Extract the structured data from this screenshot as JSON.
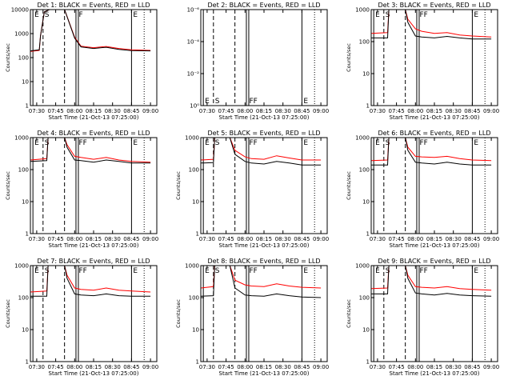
{
  "chart_data": [
    {
      "type": "line",
      "title": "Det 1: BLACK = Events, RED = LLD",
      "xlabel": "Start Time (21-Oct-13 07:25:00)",
      "ylabel": "Counts/sec",
      "x_ticks": [
        "07:30",
        "07:45",
        "08:00",
        "08:15",
        "08:30",
        "08:45",
        "09:00"
      ],
      "y_ticks": [
        "1",
        "10",
        "100",
        "1000",
        "10000"
      ],
      "y_log": true,
      "ylim": [
        1,
        10000
      ],
      "markers": [
        "E",
        "S",
        "F",
        "E"
      ],
      "series": [
        {
          "color": "#ff0000",
          "x": [
            "07:25",
            "07:32",
            "07:33",
            "07:36",
            "07:40",
            "07:45",
            "07:52",
            "08:00",
            "08:05",
            "08:15",
            "08:25",
            "08:35",
            "08:45",
            "09:00"
          ],
          "values": [
            180,
            200,
            800,
            8000,
            10000,
            10000,
            10000,
            700,
            300,
            260,
            290,
            240,
            210,
            200
          ]
        },
        {
          "color": "#000000",
          "x": [
            "07:25",
            "07:32",
            "07:33",
            "07:36",
            "07:40",
            "07:45",
            "07:52",
            "08:00",
            "08:05",
            "08:15",
            "08:25",
            "08:35",
            "08:45",
            "09:00"
          ],
          "values": [
            190,
            210,
            800,
            8000,
            10000,
            10000,
            10000,
            650,
            280,
            240,
            270,
            220,
            195,
            190
          ]
        }
      ]
    },
    {
      "type": "line",
      "title": "Det 2: BLACK = Events, RED = LLD",
      "xlabel": "Start Time (21-Oct-13 07:25:00)",
      "ylabel": "",
      "x_ticks": [
        "07:30",
        "07:45",
        "08:00",
        "08:15",
        "08:30",
        "08:45",
        "09:00"
      ],
      "y_ticks": [
        "10⁰",
        "10⁻²",
        "10⁻⁴",
        "10⁻⁶"
      ],
      "y_log": true,
      "ylim": [
        1,
        1e-06
      ],
      "markers": [
        "E",
        "S",
        "FF",
        "E"
      ],
      "series": []
    },
    {
      "type": "line",
      "title": "Det 3: BLACK = Events, RED = LLD",
      "xlabel": "Start Time (21-Oct-13 07:25:00)",
      "ylabel": "Counts/sec",
      "x_ticks": [
        "07:30",
        "07:45",
        "08:00",
        "08:15",
        "08:30",
        "08:45",
        "09:00"
      ],
      "y_ticks": [
        "1",
        "10",
        "100",
        "1000"
      ],
      "y_log": true,
      "ylim": [
        1,
        1000
      ],
      "markers": [
        "E",
        "S",
        "FF",
        "E"
      ],
      "series": [
        {
          "color": "#ff0000",
          "x": [
            "07:25",
            "07:38",
            "07:39",
            "07:41",
            "07:52",
            "07:54",
            "08:00",
            "08:05",
            "08:15",
            "08:25",
            "08:35",
            "08:45",
            "09:00"
          ],
          "values": [
            180,
            190,
            1000,
            1000,
            1000,
            500,
            250,
            210,
            180,
            190,
            160,
            150,
            140
          ]
        },
        {
          "color": "#000000",
          "x": [
            "07:25",
            "07:38",
            "07:39",
            "07:41",
            "07:52",
            "07:54",
            "08:00",
            "08:05",
            "08:15",
            "08:25",
            "08:35",
            "08:45",
            "09:00"
          ],
          "values": [
            130,
            130,
            1000,
            1000,
            1000,
            400,
            150,
            140,
            130,
            145,
            130,
            120,
            120
          ]
        }
      ]
    },
    {
      "type": "line",
      "title": "Det 4: BLACK = Events, RED = LLD",
      "xlabel": "Start Time (21-Oct-13 07:25:00)",
      "ylabel": "Counts/sec",
      "x_ticks": [
        "07:30",
        "07:45",
        "08:00",
        "08:15",
        "08:30",
        "08:45",
        "09:00"
      ],
      "y_ticks": [
        "1",
        "10",
        "100",
        "1000"
      ],
      "y_log": true,
      "ylim": [
        1,
        1000
      ],
      "markers": [
        "E",
        "S",
        "FF",
        "E"
      ],
      "series": [
        {
          "color": "#ff0000",
          "x": [
            "07:25",
            "07:38",
            "07:39",
            "07:41",
            "07:52",
            "07:54",
            "08:00",
            "08:05",
            "08:15",
            "08:25",
            "08:35",
            "08:45",
            "09:00"
          ],
          "values": [
            200,
            220,
            1000,
            1000,
            1000,
            600,
            260,
            240,
            210,
            240,
            200,
            180,
            170
          ]
        },
        {
          "color": "#000000",
          "x": [
            "07:25",
            "07:38",
            "07:39",
            "07:41",
            "07:52",
            "07:54",
            "08:00",
            "08:05",
            "08:15",
            "08:25",
            "08:35",
            "08:45",
            "09:00"
          ],
          "values": [
            180,
            190,
            1000,
            1000,
            1000,
            500,
            200,
            190,
            170,
            200,
            180,
            160,
            160
          ]
        }
      ]
    },
    {
      "type": "line",
      "title": "Det 5: BLACK = Events, RED = LLD",
      "xlabel": "Start Time (21-Oct-13 07:25:00)",
      "ylabel": "Counts/sec",
      "x_ticks": [
        "07:30",
        "07:45",
        "08:00",
        "08:15",
        "08:30",
        "08:45",
        "09:00"
      ],
      "y_ticks": [
        "1",
        "10",
        "100",
        "1000"
      ],
      "y_log": true,
      "ylim": [
        1,
        1000
      ],
      "markers": [
        "E",
        "S",
        "FF",
        "E"
      ],
      "series": [
        {
          "color": "#ff0000",
          "x": [
            "07:25",
            "07:35",
            "07:36",
            "07:38",
            "07:48",
            "07:52",
            "08:00",
            "08:05",
            "08:15",
            "08:25",
            "08:35",
            "08:45",
            "09:00"
          ],
          "values": [
            200,
            210,
            1000,
            1000,
            1000,
            400,
            250,
            220,
            210,
            270,
            230,
            200,
            200
          ]
        },
        {
          "color": "#000000",
          "x": [
            "07:25",
            "07:35",
            "07:36",
            "07:38",
            "07:48",
            "07:52",
            "08:00",
            "08:05",
            "08:15",
            "08:25",
            "08:35",
            "08:45",
            "09:00"
          ],
          "values": [
            160,
            165,
            1000,
            1000,
            1000,
            300,
            180,
            160,
            150,
            180,
            160,
            140,
            140
          ]
        }
      ]
    },
    {
      "type": "line",
      "title": "Det 6: BLACK = Events, RED = LLD",
      "xlabel": "Start Time (21-Oct-13 07:25:00)",
      "ylabel": "Counts/sec",
      "x_ticks": [
        "07:30",
        "07:45",
        "08:00",
        "08:15",
        "08:30",
        "08:45",
        "09:00"
      ],
      "y_ticks": [
        "1",
        "10",
        "100",
        "1000"
      ],
      "y_log": true,
      "ylim": [
        1,
        1000
      ],
      "markers": [
        "E",
        "S",
        "FF",
        "E"
      ],
      "series": [
        {
          "color": "#ff0000",
          "x": [
            "07:25",
            "07:38",
            "07:39",
            "07:41",
            "07:52",
            "07:54",
            "08:00",
            "08:05",
            "08:15",
            "08:25",
            "08:35",
            "08:45",
            "09:00"
          ],
          "values": [
            190,
            200,
            1000,
            1000,
            1000,
            500,
            260,
            250,
            240,
            260,
            220,
            200,
            190
          ]
        },
        {
          "color": "#000000",
          "x": [
            "07:25",
            "07:38",
            "07:39",
            "07:41",
            "07:52",
            "07:54",
            "08:00",
            "08:05",
            "08:15",
            "08:25",
            "08:35",
            "08:45",
            "09:00"
          ],
          "values": [
            140,
            140,
            1000,
            1000,
            1000,
            400,
            170,
            160,
            150,
            170,
            150,
            140,
            140
          ]
        }
      ]
    },
    {
      "type": "line",
      "title": "Det 7: BLACK = Events, RED = LLD",
      "xlabel": "Start Time (21-Oct-13 07:25:00)",
      "ylabel": "Counts/sec",
      "x_ticks": [
        "07:30",
        "07:45",
        "08:00",
        "08:15",
        "08:30",
        "08:45",
        "09:00"
      ],
      "y_ticks": [
        "1",
        "10",
        "100",
        "1000"
      ],
      "y_log": true,
      "ylim": [
        1,
        1000
      ],
      "markers": [
        "E",
        "S",
        "FF",
        "E"
      ],
      "series": [
        {
          "color": "#ff0000",
          "x": [
            "07:25",
            "07:38",
            "07:39",
            "07:41",
            "07:52",
            "07:54",
            "08:00",
            "08:05",
            "08:15",
            "08:25",
            "08:35",
            "08:45",
            "09:00"
          ],
          "values": [
            150,
            160,
            1000,
            1000,
            1000,
            500,
            200,
            180,
            170,
            200,
            170,
            160,
            150
          ]
        },
        {
          "color": "#000000",
          "x": [
            "07:25",
            "07:38",
            "07:39",
            "07:41",
            "07:52",
            "07:54",
            "08:00",
            "08:05",
            "08:15",
            "08:25",
            "08:35",
            "08:45",
            "09:00"
          ],
          "values": [
            110,
            110,
            1000,
            1000,
            1000,
            400,
            130,
            120,
            115,
            130,
            115,
            110,
            110
          ]
        }
      ]
    },
    {
      "type": "line",
      "title": "Det 8: BLACK = Events, RED = LLD",
      "xlabel": "Start Time (21-Oct-13 07:25:00)",
      "ylabel": "Counts/sec",
      "x_ticks": [
        "07:30",
        "07:45",
        "08:00",
        "08:15",
        "08:30",
        "08:45",
        "09:00"
      ],
      "y_ticks": [
        "1",
        "10",
        "100",
        "1000"
      ],
      "y_log": true,
      "ylim": [
        1,
        1000
      ],
      "markers": [
        "E",
        "S",
        "FF",
        "E"
      ],
      "series": [
        {
          "color": "#ff0000",
          "x": [
            "07:25",
            "07:35",
            "07:36",
            "07:38",
            "07:48",
            "07:52",
            "08:00",
            "08:05",
            "08:15",
            "08:25",
            "08:35",
            "08:45",
            "09:00"
          ],
          "values": [
            200,
            220,
            1000,
            1000,
            1000,
            350,
            250,
            230,
            220,
            270,
            230,
            210,
            200
          ]
        },
        {
          "color": "#000000",
          "x": [
            "07:25",
            "07:35",
            "07:36",
            "07:38",
            "07:48",
            "07:52",
            "08:00",
            "08:05",
            "08:15",
            "08:25",
            "08:35",
            "08:45",
            "09:00"
          ],
          "values": [
            110,
            115,
            1000,
            1000,
            1000,
            200,
            120,
            115,
            110,
            130,
            115,
            105,
            100
          ]
        }
      ]
    },
    {
      "type": "line",
      "title": "Det 9: BLACK = Events, RED = LLD",
      "xlabel": "Start Time (21-Oct-13 07:25:00)",
      "ylabel": "Counts/sec",
      "x_ticks": [
        "07:30",
        "07:45",
        "08:00",
        "08:15",
        "08:30",
        "08:45",
        "09:00"
      ],
      "y_ticks": [
        "1",
        "10",
        "100",
        "1000"
      ],
      "y_log": true,
      "ylim": [
        1,
        1000
      ],
      "markers": [
        "E",
        "S",
        "FF",
        "E"
      ],
      "series": [
        {
          "color": "#ff0000",
          "x": [
            "07:25",
            "07:38",
            "07:39",
            "07:41",
            "07:52",
            "07:54",
            "08:00",
            "08:05",
            "08:15",
            "08:25",
            "08:35",
            "08:45",
            "09:00"
          ],
          "values": [
            190,
            200,
            1000,
            1000,
            1000,
            500,
            220,
            210,
            200,
            220,
            190,
            180,
            170
          ]
        },
        {
          "color": "#000000",
          "x": [
            "07:25",
            "07:38",
            "07:39",
            "07:41",
            "07:52",
            "07:54",
            "08:00",
            "08:05",
            "08:15",
            "08:25",
            "08:35",
            "08:45",
            "09:00"
          ],
          "values": [
            130,
            130,
            1000,
            1000,
            1000,
            400,
            140,
            130,
            120,
            135,
            120,
            115,
            110
          ]
        }
      ]
    }
  ]
}
